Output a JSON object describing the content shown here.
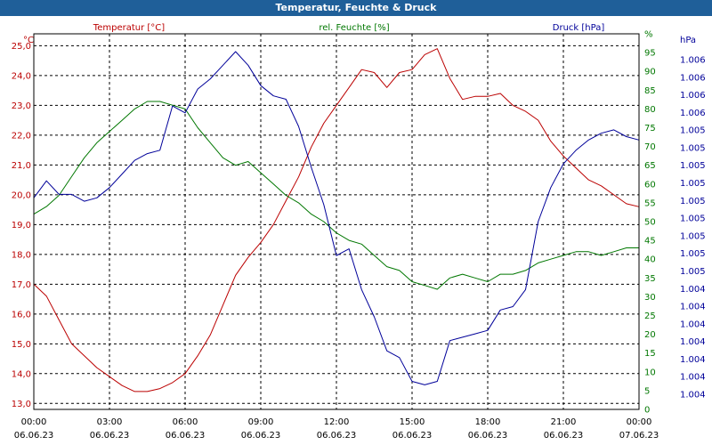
{
  "window": {
    "title": "Temperatur, Feuchte & Druck"
  },
  "colors": {
    "temperature": "#bb0000",
    "humidity": "#007700",
    "pressure": "#000099",
    "grid": "#000000",
    "titlebar": "#1f5f99"
  },
  "chart_data": {
    "type": "line",
    "title": "Temperatur, Feuchte & Druck",
    "x_ticks": [
      {
        "time": "00:00",
        "date": "06.06.23"
      },
      {
        "time": "03:00",
        "date": "06.06.23"
      },
      {
        "time": "06:00",
        "date": "06.06.23"
      },
      {
        "time": "09:00",
        "date": "06.06.23"
      },
      {
        "time": "12:00",
        "date": "06.06.23"
      },
      {
        "time": "15:00",
        "date": "06.06.23"
      },
      {
        "time": "18:00",
        "date": "06.06.23"
      },
      {
        "time": "21:00",
        "date": "06.06.23"
      },
      {
        "time": "00:00",
        "date": "07.06.23"
      }
    ],
    "x_range_hours": [
      0,
      24
    ],
    "axes": {
      "temperature": {
        "label": "Temperatur [°C]",
        "unit": "°C",
        "range": [
          12.8,
          25.4
        ],
        "ticks": [
          "25,0",
          "24,0",
          "23,0",
          "22,0",
          "21,0",
          "20,0",
          "19,0",
          "18,0",
          "17,0",
          "16,0",
          "15,0",
          "14,0",
          "13,0"
        ]
      },
      "humidity": {
        "label": "rel. Feuchte [%]",
        "unit": "%",
        "range": [
          0,
          100
        ],
        "ticks": [
          "0",
          "5",
          "10",
          "15",
          "20",
          "25",
          "30",
          "35",
          "40",
          "45",
          "50",
          "55",
          "60",
          "65",
          "70",
          "75",
          "80",
          "85",
          "90",
          "95",
          "%"
        ]
      },
      "pressure": {
        "label": "Druck [hPa]",
        "unit": "hPa",
        "range": [
          0,
          1
        ],
        "ticks": [
          "1.006",
          "1.006",
          "1.006",
          "1.006",
          "1.005",
          "1.005",
          "1.005",
          "1.005",
          "1.005",
          "1.005",
          "1.005",
          "1.005",
          "1.005",
          "1.004",
          "1.004",
          "1.004",
          "1.004",
          "1.004",
          "1.004",
          "1.004"
        ]
      }
    },
    "series": [
      {
        "name": "Temperatur [°C]",
        "axis": "temperature",
        "color": "#bb0000",
        "x": [
          0,
          0.5,
          1,
          1.5,
          2,
          2.5,
          3,
          3.5,
          4,
          4.5,
          5,
          5.5,
          6,
          6.5,
          7,
          7.5,
          8,
          8.5,
          9,
          9.5,
          10,
          10.5,
          11,
          11.5,
          12,
          12.5,
          13,
          13.5,
          14,
          14.5,
          15,
          15.5,
          16,
          16.5,
          17,
          17.5,
          18,
          18.5,
          19,
          19.5,
          20,
          20.5,
          21,
          21.5,
          22,
          22.5,
          23,
          23.5,
          24
        ],
        "values": [
          17.0,
          16.6,
          15.8,
          15.0,
          14.6,
          14.2,
          13.9,
          13.6,
          13.4,
          13.4,
          13.5,
          13.7,
          14.0,
          14.6,
          15.3,
          16.3,
          17.3,
          17.9,
          18.4,
          19.0,
          19.8,
          20.6,
          21.6,
          22.4,
          23.0,
          23.6,
          24.2,
          24.1,
          23.6,
          24.1,
          24.2,
          24.7,
          24.9,
          23.9,
          23.2,
          23.3,
          23.3,
          23.4,
          23.0,
          22.8,
          22.5,
          21.8,
          21.3,
          20.9,
          20.5,
          20.3,
          20.0,
          19.7,
          19.6
        ]
      },
      {
        "name": "rel. Feuchte [%]",
        "axis": "humidity",
        "color": "#007700",
        "x": [
          0,
          0.5,
          1,
          1.5,
          2,
          2.5,
          3,
          3.5,
          4,
          4.5,
          5,
          5.5,
          6,
          6.5,
          7,
          7.5,
          8,
          8.5,
          9,
          9.5,
          10,
          10.5,
          11,
          11.5,
          12,
          12.5,
          13,
          13.5,
          14,
          14.5,
          15,
          15.5,
          16,
          16.5,
          17,
          17.5,
          18,
          18.5,
          19,
          19.5,
          20,
          20.5,
          21,
          21.5,
          22,
          22.5,
          23,
          23.5,
          24
        ],
        "values": [
          52,
          54,
          57,
          62,
          67,
          71,
          74,
          77,
          80,
          82,
          82,
          81,
          80,
          75,
          71,
          67,
          65,
          66,
          63,
          60,
          57,
          55,
          52,
          50,
          47,
          45,
          44,
          41,
          38,
          37,
          34,
          33,
          32,
          35,
          36,
          35,
          34,
          36,
          36,
          37,
          39,
          40,
          41,
          42,
          42,
          41,
          42,
          43,
          43
        ]
      },
      {
        "name": "Druck [hPa]",
        "axis": "pressure",
        "color": "#000099",
        "x": [
          0,
          0.5,
          1,
          1.5,
          2,
          2.5,
          3,
          3.5,
          4,
          4.5,
          5,
          5.5,
          6,
          6.5,
          7,
          7.5,
          8,
          8.5,
          9,
          9.5,
          10,
          10.5,
          11,
          11.5,
          12,
          12.5,
          13,
          13.5,
          14,
          14.5,
          15,
          15.5,
          16,
          16.5,
          17,
          17.5,
          18,
          18.5,
          19,
          19.5,
          20,
          20.5,
          21,
          21.5,
          22,
          22.5,
          23,
          23.5,
          24
        ],
        "values": [
          0.57,
          0.62,
          0.58,
          0.58,
          0.56,
          0.57,
          0.6,
          0.64,
          0.68,
          0.7,
          0.71,
          0.84,
          0.82,
          0.89,
          0.92,
          0.96,
          1.0,
          0.96,
          0.9,
          0.87,
          0.86,
          0.78,
          0.66,
          0.55,
          0.4,
          0.42,
          0.3,
          0.22,
          0.12,
          0.1,
          0.03,
          0.02,
          0.03,
          0.15,
          0.16,
          0.17,
          0.18,
          0.24,
          0.25,
          0.3,
          0.5,
          0.6,
          0.67,
          0.71,
          0.74,
          0.76,
          0.77,
          0.75,
          0.74
        ]
      }
    ]
  }
}
